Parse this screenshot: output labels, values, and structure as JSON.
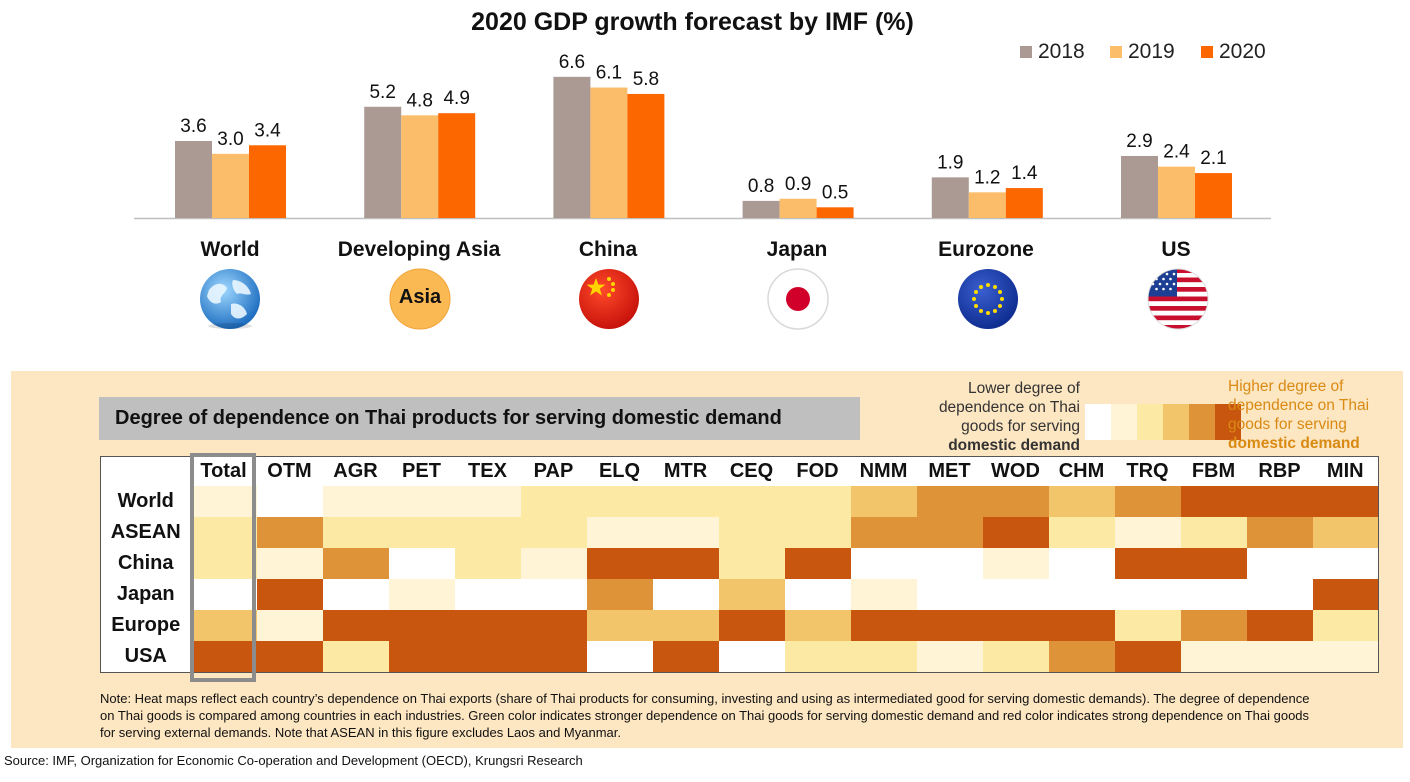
{
  "chart_data": [
    {
      "type": "bar",
      "title": "2020 GDP growth forecast by IMF (%)",
      "categories": [
        "World",
        "Developing Asia",
        "China",
        "Japan",
        "Eurozone",
        "US"
      ],
      "series": [
        {
          "name": "2018",
          "color": "#ab9a93",
          "values": [
            3.6,
            5.2,
            6.6,
            0.8,
            1.9,
            2.9
          ]
        },
        {
          "name": "2019",
          "color": "#fcbd6a",
          "values": [
            3.0,
            4.8,
            6.1,
            0.9,
            1.2,
            2.4
          ]
        },
        {
          "name": "2020",
          "color": "#fc6700",
          "values": [
            3.4,
            4.9,
            5.8,
            0.5,
            1.4,
            2.1
          ]
        }
      ],
      "value_labels": [
        [
          "3.6",
          "3.0",
          "3.4"
        ],
        [
          "5.2",
          "4.8",
          "4.9"
        ],
        [
          "6.6",
          "6.1",
          "5.8"
        ],
        [
          "0.8",
          "0.9",
          "0.5"
        ],
        [
          "1.9",
          "1.2",
          "1.4"
        ],
        [
          "2.9",
          "2.4",
          "2.1"
        ]
      ],
      "ylim": [
        0,
        7.2
      ],
      "xlabel": "",
      "ylabel": "",
      "legend": "top-right",
      "grid": false
    },
    {
      "type": "heatmap",
      "title": "Degree of dependence on Thai products for serving domestic demand",
      "columns": [
        "Total",
        "OTM",
        "AGR",
        "PET",
        "TEX",
        "PAP",
        "ELQ",
        "MTR",
        "CEQ",
        "FOD",
        "NMM",
        "MET",
        "WOD",
        "CHM",
        "TRQ",
        "FBM",
        "RBP",
        "MIN"
      ],
      "rows": [
        "World",
        "ASEAN",
        "China",
        "Japan",
        "Europe",
        "USA"
      ],
      "scale_note": "levels 0 (lowest dependence, white) to 5 (highest dependence, dark orange); values estimated from cell colors",
      "levels": [
        [
          1,
          0,
          1,
          1,
          1,
          2,
          2,
          2,
          2,
          2,
          3,
          4,
          4,
          3,
          4,
          5,
          5,
          5
        ],
        [
          2,
          4,
          2,
          2,
          2,
          2,
          1,
          1,
          2,
          2,
          4,
          4,
          5,
          2,
          1,
          2,
          4,
          3
        ],
        [
          2,
          1,
          4,
          0,
          2,
          1,
          5,
          5,
          2,
          5,
          0,
          0,
          1,
          0,
          5,
          5,
          0,
          0
        ],
        [
          0,
          5,
          0,
          1,
          0,
          0,
          4,
          0,
          3,
          0,
          1,
          0,
          0,
          0,
          0,
          0,
          0,
          5
        ],
        [
          3,
          1,
          5,
          5,
          5,
          5,
          3,
          3,
          5,
          3,
          5,
          5,
          5,
          5,
          2,
          4,
          5,
          2
        ],
        [
          5,
          5,
          2,
          5,
          5,
          5,
          0,
          5,
          0,
          2,
          2,
          1,
          2,
          4,
          5,
          1,
          1,
          1
        ]
      ],
      "scale_colors": [
        "#ffffff",
        "#fff4d6",
        "#fbe9a4",
        "#f3c56b",
        "#de9338",
        "#c9560e"
      ]
    }
  ],
  "legend_labels": [
    "2018",
    "2019",
    "2020"
  ],
  "countries": [
    {
      "name": "World",
      "icon": "globe-icon"
    },
    {
      "name": "Developing Asia",
      "icon": "asia-badge-icon",
      "badge_text": "Asia"
    },
    {
      "name": "China",
      "icon": "china-flag-icon"
    },
    {
      "name": "Japan",
      "icon": "japan-flag-icon"
    },
    {
      "name": "Eurozone",
      "icon": "eu-flag-icon"
    },
    {
      "name": "US",
      "icon": "us-flag-icon"
    }
  ],
  "heatmap_legend": {
    "lower_text": "Lower degree of dependence on Thai goods for serving",
    "lower_bold": "domestic demand",
    "higher_text": "Higher degree of dependence on Thai goods for serving",
    "higher_bold": "domestic demand"
  },
  "note": "Note: Heat maps reflect each country’s dependence on Thai exports (share of Thai products for consuming, investing and using as intermediated good for serving domestic demands). The degree of dependence on Thai goods is compared among countries in each industries. Green color indicates stronger dependence on Thai goods for serving domestic demand and red color indicates strong dependence on Thai goods for serving external demands. Note that ASEAN in this figure excludes Laos and Myanmar.",
  "source": "Source: IMF, Organization for Economic Co-operation and Development (OECD), Krungsri Research"
}
